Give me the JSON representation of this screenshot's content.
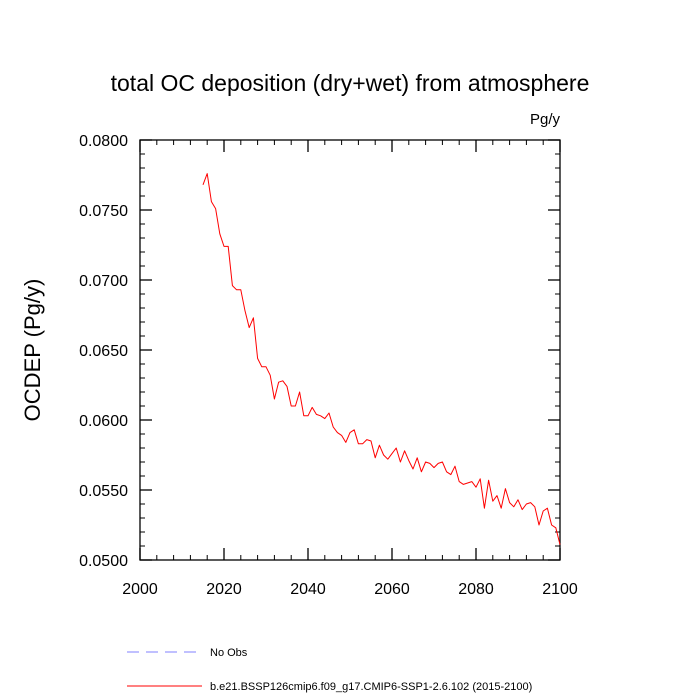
{
  "chart_data": {
    "type": "line",
    "title": "total OC deposition (dry+wet) from atmosphere",
    "units_label": "Pg/y",
    "xlabel": "",
    "ylabel": "OCDEP  (Pg/y)",
    "xlim": [
      2000,
      2100
    ],
    "ylim": [
      0.05,
      0.08
    ],
    "x_ticks": [
      2000,
      2020,
      2040,
      2060,
      2080,
      2100
    ],
    "x_tick_labels": [
      "2000",
      "2020",
      "2040",
      "2060",
      "2080",
      "2100"
    ],
    "y_ticks": [
      0.05,
      0.055,
      0.06,
      0.065,
      0.07,
      0.075,
      0.08
    ],
    "y_tick_labels": [
      "0.0500",
      "0.0550",
      "0.0600",
      "0.0650",
      "0.0700",
      "0.0750",
      "0.0800"
    ],
    "grid": false,
    "legend_position": "bottom",
    "series": [
      {
        "name": "b.e21.BSSP126cmip6.f09_g17.CMIP6-SSP1-2.6.102 (2015-2100)",
        "color": "#ff0000",
        "style": "solid",
        "x": [
          2015,
          2016,
          2017,
          2018,
          2019,
          2020,
          2021,
          2022,
          2023,
          2024,
          2025,
          2026,
          2027,
          2028,
          2029,
          2030,
          2031,
          2032,
          2033,
          2034,
          2035,
          2036,
          2037,
          2038,
          2039,
          2040,
          2041,
          2042,
          2043,
          2044,
          2045,
          2046,
          2047,
          2048,
          2049,
          2050,
          2051,
          2052,
          2053,
          2054,
          2055,
          2056,
          2057,
          2058,
          2059,
          2060,
          2061,
          2062,
          2063,
          2064,
          2065,
          2066,
          2067,
          2068,
          2069,
          2070,
          2071,
          2072,
          2073,
          2074,
          2075,
          2076,
          2077,
          2078,
          2079,
          2080,
          2081,
          2082,
          2083,
          2084,
          2085,
          2086,
          2087,
          2088,
          2089,
          2090,
          2091,
          2092,
          2093,
          2094,
          2095,
          2096,
          2097,
          2098,
          2099,
          2100
        ],
        "values": [
          0.0768,
          0.0776,
          0.0756,
          0.0751,
          0.0733,
          0.0724,
          0.0724,
          0.0696,
          0.0693,
          0.0693,
          0.0678,
          0.0666,
          0.0673,
          0.0644,
          0.0638,
          0.0638,
          0.0632,
          0.0615,
          0.0627,
          0.0628,
          0.0624,
          0.061,
          0.061,
          0.062,
          0.0603,
          0.0603,
          0.0609,
          0.0604,
          0.0603,
          0.0601,
          0.0605,
          0.0595,
          0.0591,
          0.0589,
          0.0584,
          0.0591,
          0.0593,
          0.0583,
          0.0583,
          0.0586,
          0.0585,
          0.0573,
          0.0582,
          0.0575,
          0.0572,
          0.0576,
          0.058,
          0.057,
          0.0578,
          0.0571,
          0.0565,
          0.0573,
          0.0563,
          0.057,
          0.0569,
          0.0566,
          0.0569,
          0.057,
          0.0563,
          0.0561,
          0.0567,
          0.0556,
          0.0554,
          0.0555,
          0.0556,
          0.0552,
          0.0558,
          0.0537,
          0.0557,
          0.0542,
          0.0546,
          0.0537,
          0.0551,
          0.0541,
          0.0538,
          0.0543,
          0.0536,
          0.054,
          0.0541,
          0.0538,
          0.0525,
          0.0535,
          0.0537,
          0.0525,
          0.0523,
          0.0511
        ]
      }
    ],
    "legend": [
      {
        "label": "No Obs",
        "color": "#8080ff",
        "style": "dashed"
      },
      {
        "label": "b.e21.BSSP126cmip6.f09_g17.CMIP6-SSP1-2.6.102 (2015-2100)",
        "color": "#ff0000",
        "style": "solid"
      }
    ]
  }
}
